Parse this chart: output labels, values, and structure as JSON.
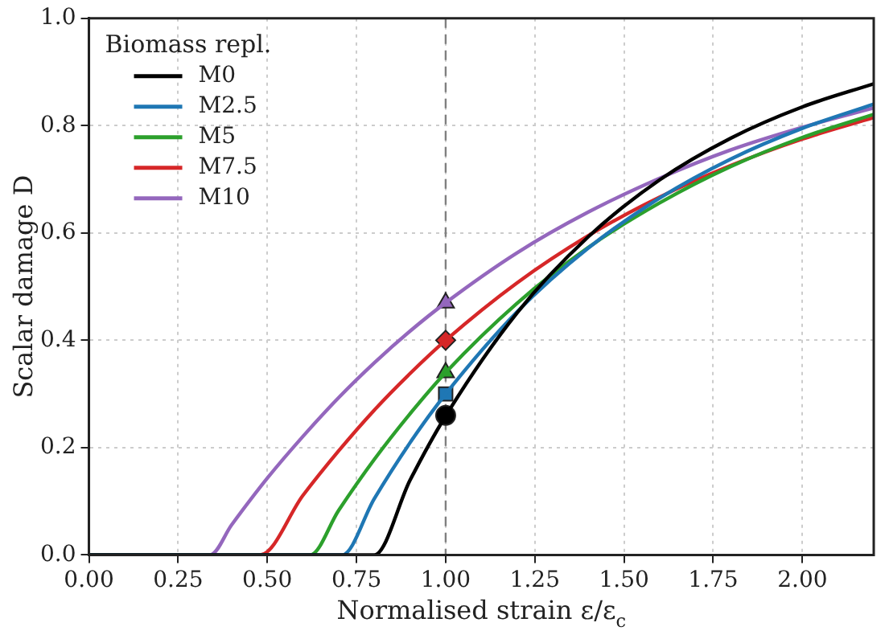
{
  "chart_data": {
    "type": "line",
    "xlabel": "Normalised strain ε/ε$_{c}$",
    "ylabel": "Scalar damage D",
    "legend_title": "Biomass repl.",
    "xlim": [
      0,
      2.2
    ],
    "ylim": [
      0,
      1
    ],
    "xticks": [
      {
        "value": 0,
        "label": "0.00"
      },
      {
        "value": 0.25,
        "label": "0.25"
      },
      {
        "value": 0.5,
        "label": "0.50"
      },
      {
        "value": 0.75,
        "label": "0.75"
      },
      {
        "value": 1,
        "label": "1.00"
      },
      {
        "value": 1.25,
        "label": "1.25"
      },
      {
        "value": 1.5,
        "label": "1.50"
      },
      {
        "value": 1.75,
        "label": "1.75"
      },
      {
        "value": 2,
        "label": "2.00"
      }
    ],
    "yticks": [
      {
        "value": 0,
        "label": "0.0"
      },
      {
        "value": 0.2,
        "label": "0.2"
      },
      {
        "value": 0.4,
        "label": "0.4"
      },
      {
        "value": 0.6,
        "label": "0.6"
      },
      {
        "value": 0.8,
        "label": "0.8"
      },
      {
        "value": 1,
        "label": "1.0"
      }
    ],
    "grid": true,
    "legend": "top left",
    "line_style": "solid",
    "ref_lines": [
      {
        "axis": "x",
        "value": 1,
        "color": "#808080",
        "line_style": "dashed"
      }
    ],
    "series": [
      {
        "name": "M0",
        "color": "#000000",
        "marker": "none",
        "x": [
          0,
          0.8,
          0.9,
          1.0,
          1.2,
          1.4,
          1.6,
          1.8,
          2.0,
          2.2
        ],
        "values": [
          0,
          0,
          0.139,
          0.259,
          0.451,
          0.593,
          0.699,
          0.777,
          0.835,
          0.878
        ]
      },
      {
        "name": "M2.5",
        "color": "#1f77b4",
        "marker": "none",
        "x": [
          0,
          0.71,
          0.8,
          0.9,
          1.0,
          1.2,
          1.4,
          1.6,
          1.8,
          2.0,
          2.2
        ],
        "values": [
          0,
          0,
          0.105,
          0.209,
          0.3,
          0.453,
          0.572,
          0.665,
          0.738,
          0.795,
          0.84
        ]
      },
      {
        "name": "M5",
        "color": "#2ca02c",
        "marker": "none",
        "x": [
          0,
          0.62,
          0.7,
          0.8,
          0.9,
          1.0,
          1.2,
          1.4,
          1.6,
          1.8,
          2.0,
          2.2
        ],
        "values": [
          0,
          0,
          0.083,
          0.178,
          0.263,
          0.34,
          0.469,
          0.573,
          0.656,
          0.724,
          0.778,
          0.821
        ]
      },
      {
        "name": "M7.5",
        "color": "#d62728",
        "marker": "none",
        "x": [
          0,
          0.48,
          0.6,
          0.7,
          0.8,
          0.9,
          1.0,
          1.2,
          1.4,
          1.6,
          1.8,
          2.0,
          2.2
        ],
        "values": [
          0,
          0,
          0.111,
          0.194,
          0.27,
          0.338,
          0.4,
          0.507,
          0.595,
          0.667,
          0.726,
          0.775,
          0.815
        ]
      },
      {
        "name": "M10",
        "color": "#9467bd",
        "marker": "none",
        "x": [
          0,
          0.34,
          0.4,
          0.5,
          0.6,
          0.7,
          0.8,
          0.9,
          1.0,
          1.2,
          1.4,
          1.6,
          1.8,
          2.0,
          2.2
        ],
        "values": [
          0,
          0,
          0.056,
          0.143,
          0.221,
          0.293,
          0.358,
          0.417,
          0.47,
          0.563,
          0.639,
          0.702,
          0.755,
          0.797,
          0.833
        ]
      },
      {
        "type": "scatter",
        "color": "#000000",
        "marker": "circle",
        "x": [
          1
        ],
        "values": [
          0.26
        ]
      },
      {
        "type": "scatter",
        "color": "#1f77b4",
        "marker": "square",
        "x": [
          1
        ],
        "values": [
          0.3
        ]
      },
      {
        "type": "scatter",
        "color": "#2ca02c",
        "marker": "triangle",
        "x": [
          1
        ],
        "values": [
          0.34
        ]
      },
      {
        "type": "scatter",
        "color": "#d62728",
        "marker": "diamond",
        "x": [
          1
        ],
        "values": [
          0.4
        ]
      },
      {
        "type": "scatter",
        "color": "#9467bd",
        "marker": "triangle",
        "x": [
          1
        ],
        "values": [
          0.47
        ]
      }
    ]
  }
}
